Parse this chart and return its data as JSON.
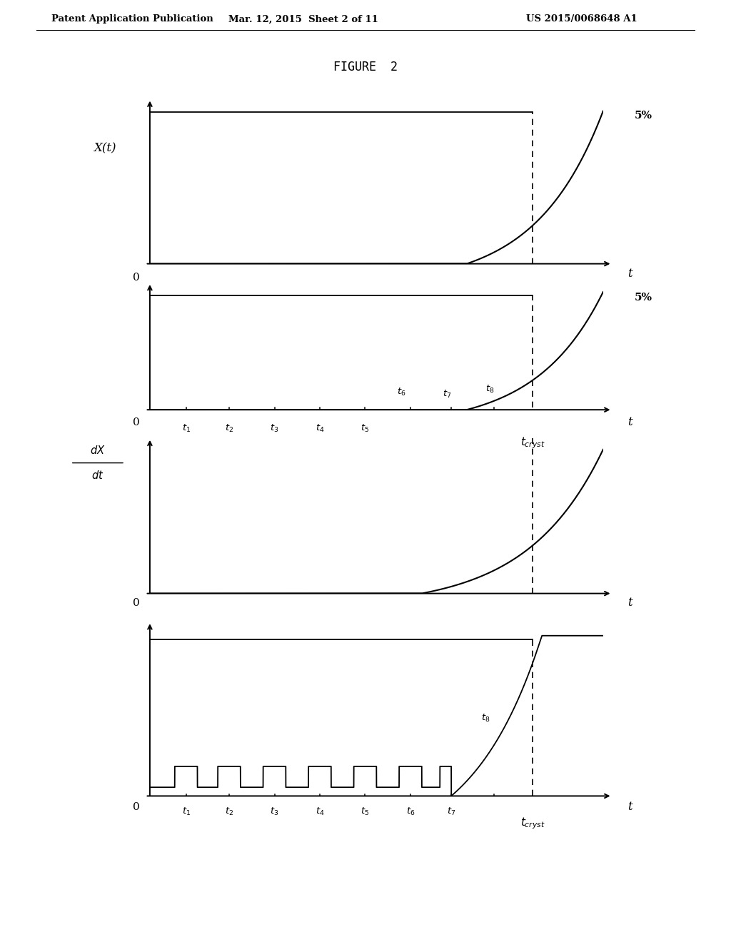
{
  "title": "FIGURE  2",
  "header_left": "Patent Application Publication",
  "header_mid": "Mar. 12, 2015  Sheet 2 of 11",
  "header_right": "US 2015/0068648 A1",
  "bg_color": "#ffffff",
  "line_color": "#000000",
  "dashed_color": "#555555",
  "plot1_ylabel": "X(t)",
  "plot1_pct": "5%",
  "plot1_xlabel": "t",
  "plot1_zero": "0",
  "plot2_pct": "5%",
  "plot2_xlabel": "t",
  "plot2_xcryst": "$t_{cryst}$",
  "plot2_zero": "0",
  "plot3_zero": "0",
  "plot3_xlabel": "t",
  "plot4_xlabel": "t",
  "plot4_xcryst": "$t_{cryst}$",
  "plot4_zero": "0",
  "t_labels_2": [
    "$t_1$",
    "$t_2$",
    "$t_3$",
    "$t_4$",
    "$t_5$",
    "$t_6$",
    "$t_7$",
    "$t_8$"
  ],
  "t_labels_4": [
    "$t_1$",
    "$t_2$",
    "$t_3$",
    "$t_4$",
    "$t_5$",
    "$t_6$",
    "$t_7$",
    "$t_8$"
  ]
}
